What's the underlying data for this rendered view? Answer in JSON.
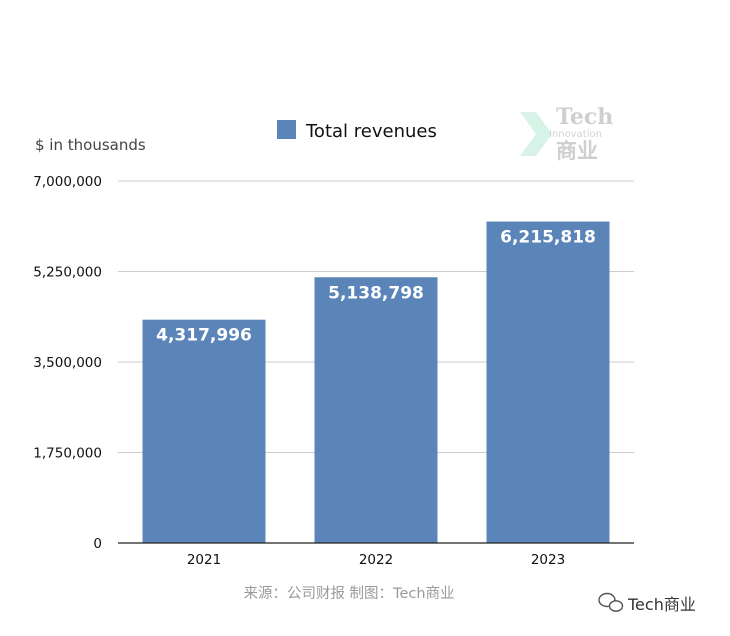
{
  "chart_data": {
    "type": "bar",
    "categories": [
      "2021",
      "2022",
      "2023"
    ],
    "series": [
      {
        "name": "Total revenues",
        "values": [
          4317996,
          5138798,
          6215818
        ]
      }
    ],
    "data_labels": [
      "4,317,996",
      "5,138,798",
      "6,215,818"
    ],
    "ylabel": "$ in thousands",
    "ylim": [
      0,
      7000000
    ],
    "y_ticks": [
      0,
      1750000,
      3500000,
      5250000,
      7000000
    ],
    "y_tick_labels": [
      "0",
      "1,750,000",
      "3,500,000",
      "5,250,000",
      "7,000,000"
    ],
    "grid": true,
    "legend_position": "top",
    "bar_color": "#5b85b9"
  },
  "source_note": "来源：公司财报 制图：Tech商业",
  "watermark": {
    "line1": "Tech",
    "line2": "Innovation",
    "line3": "商业"
  },
  "brand": {
    "icon": "wechat-icon",
    "text": "Tech商业"
  }
}
